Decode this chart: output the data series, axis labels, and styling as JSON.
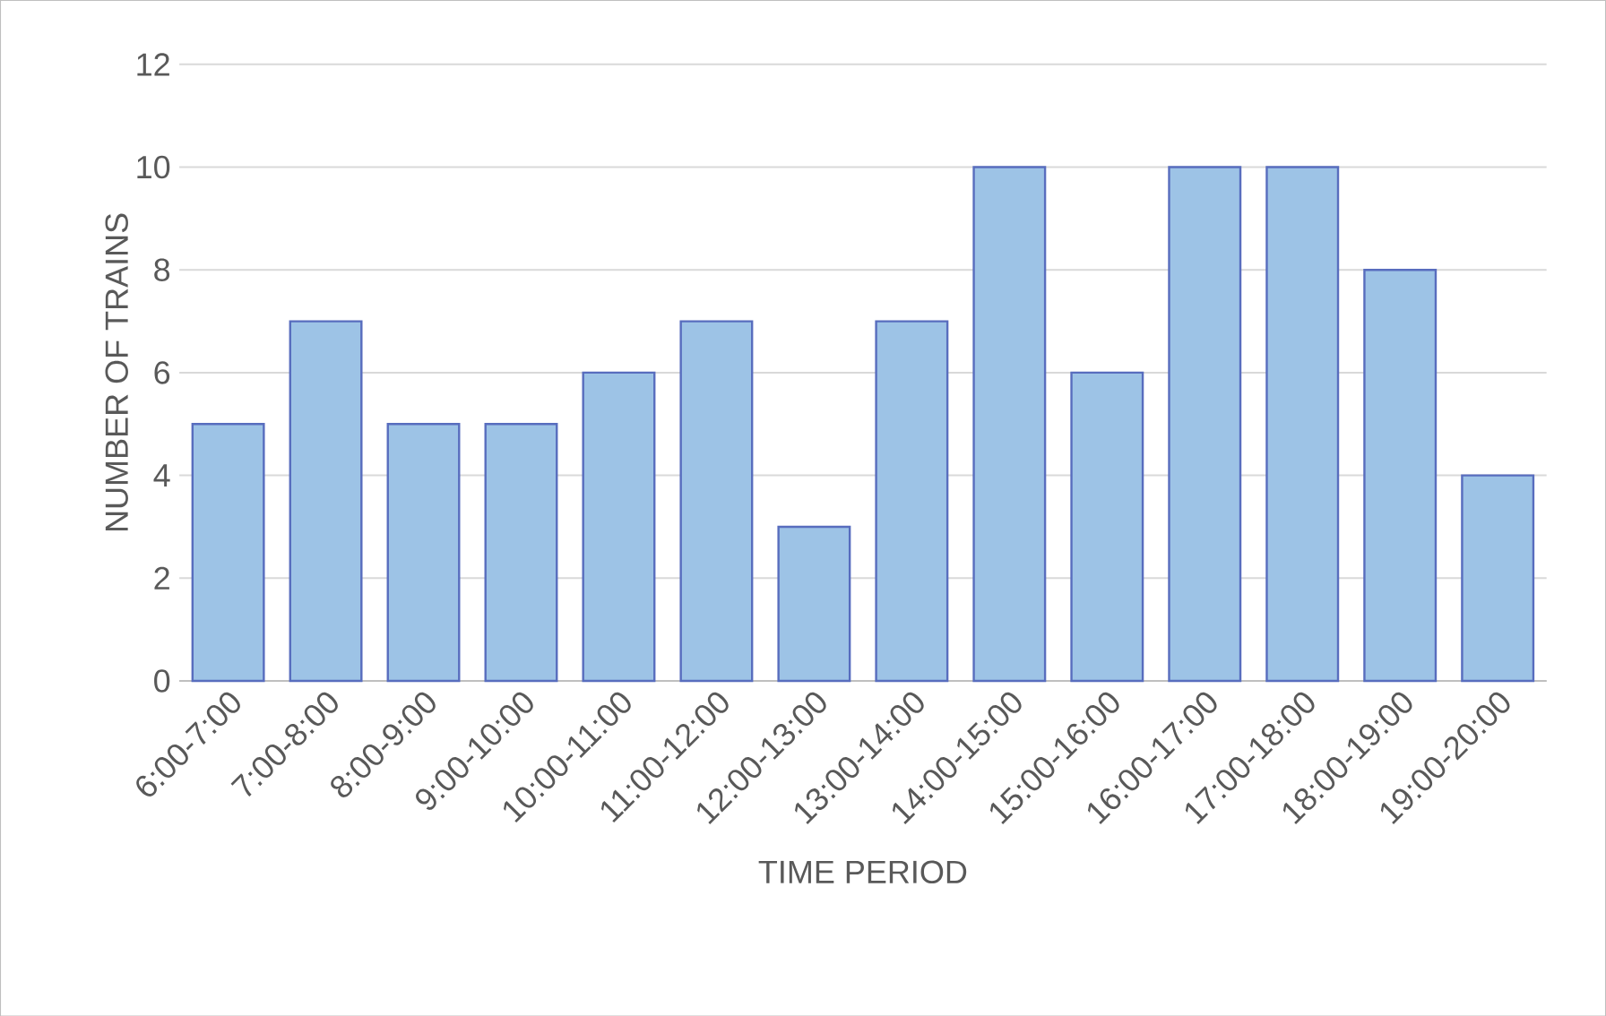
{
  "chart_data": {
    "type": "bar",
    "xlabel": "TIME PERIOD",
    "ylabel": "NUMBER OF TRAINS",
    "categories": [
      "6:00-7:00",
      "7:00-8:00",
      "8:00-9:00",
      "9:00-10:00",
      "10:00-11:00",
      "11:00-12:00",
      "12:00-13:00",
      "13:00-14:00",
      "14:00-15:00",
      "15:00-16:00",
      "16:00-17:00",
      "17:00-18:00",
      "18:00-19:00",
      "19:00-20:00"
    ],
    "values": [
      5,
      7,
      5,
      5,
      6,
      7,
      3,
      7,
      10,
      6,
      10,
      10,
      8,
      4
    ],
    "color": "#9dc3e6",
    "ylim": [
      0,
      12
    ],
    "yticks": [
      0,
      2,
      4,
      6,
      8,
      10,
      12
    ],
    "grid": "y"
  }
}
